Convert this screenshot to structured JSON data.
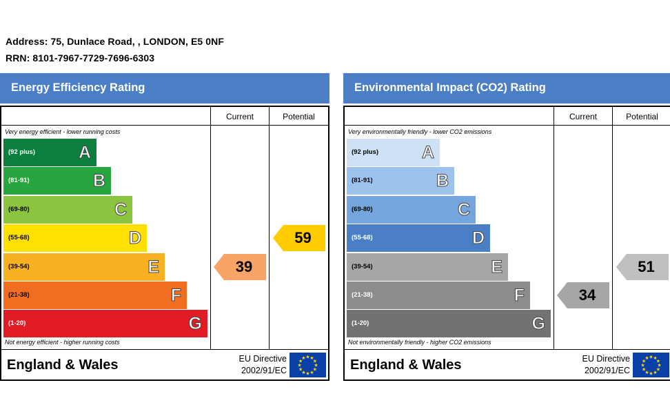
{
  "address": "Address: 75, Dunlace Road, , LONDON, E5 0NF",
  "rrn": "RRN: 8101-7967-7729-7696-6303",
  "chart_data": [
    {
      "type": "bar",
      "title": "Energy Efficiency Rating",
      "columns": [
        "Current",
        "Potential"
      ],
      "top_caption": "Very energy efficient - lower running costs",
      "bottom_caption": "Not energy efficient - higher running costs",
      "bands": [
        {
          "range": "(92 plus)",
          "letter": "A",
          "color": "#0c7f3f",
          "range_color": "#ffffff"
        },
        {
          "range": "(81-91)",
          "letter": "B",
          "color": "#27a53f",
          "range_color": "#ffffff"
        },
        {
          "range": "(69-80)",
          "letter": "C",
          "color": "#8cc43f",
          "range_color": "#000000"
        },
        {
          "range": "(55-68)",
          "letter": "D",
          "color": "#ffe000",
          "range_color": "#000000"
        },
        {
          "range": "(39-54)",
          "letter": "E",
          "color": "#f9b122",
          "range_color": "#000000"
        },
        {
          "range": "(21-38)",
          "letter": "F",
          "color": "#ef6e21",
          "range_color": "#000000"
        },
        {
          "range": "(1-20)",
          "letter": "G",
          "color": "#e21c24",
          "range_color": "#ffffff"
        }
      ],
      "current": {
        "value": "39",
        "band": "E",
        "color": "#f9a466"
      },
      "potential": {
        "value": "59",
        "band": "D",
        "color": "#ffcc00"
      },
      "footer_left": "England & Wales",
      "footer_eu": [
        "EU Directive",
        "2002/91/EC"
      ]
    },
    {
      "type": "bar",
      "title": "Environmental Impact (CO2) Rating",
      "columns": [
        "Current",
        "Potential"
      ],
      "top_caption": "Very environmentally friendly - lower CO2 emissions",
      "bottom_caption": "Not environmentally friendly - higher CO2 emissions",
      "bands": [
        {
          "range": "(92 plus)",
          "letter": "A",
          "color": "#cfe2f5",
          "range_color": "#000000"
        },
        {
          "range": "(81-91)",
          "letter": "B",
          "color": "#9dc3ec",
          "range_color": "#000000"
        },
        {
          "range": "(69-80)",
          "letter": "C",
          "color": "#74a5dd",
          "range_color": "#000000"
        },
        {
          "range": "(55-68)",
          "letter": "D",
          "color": "#4a7fc5",
          "range_color": "#ffffff"
        },
        {
          "range": "(39-54)",
          "letter": "E",
          "color": "#a6a6a6",
          "range_color": "#000000"
        },
        {
          "range": "(21-38)",
          "letter": "F",
          "color": "#8c8c8c",
          "range_color": "#ffffff"
        },
        {
          "range": "(1-20)",
          "letter": "G",
          "color": "#727272",
          "range_color": "#ffffff"
        }
      ],
      "current": {
        "value": "34",
        "band": "F",
        "color": "#a6a6a6"
      },
      "potential": {
        "value": "51",
        "band": "E",
        "color": "#bfbfbf"
      },
      "footer_left": "England & Wales",
      "footer_eu": [
        "EU Directive",
        "2002/91/EC"
      ]
    }
  ]
}
